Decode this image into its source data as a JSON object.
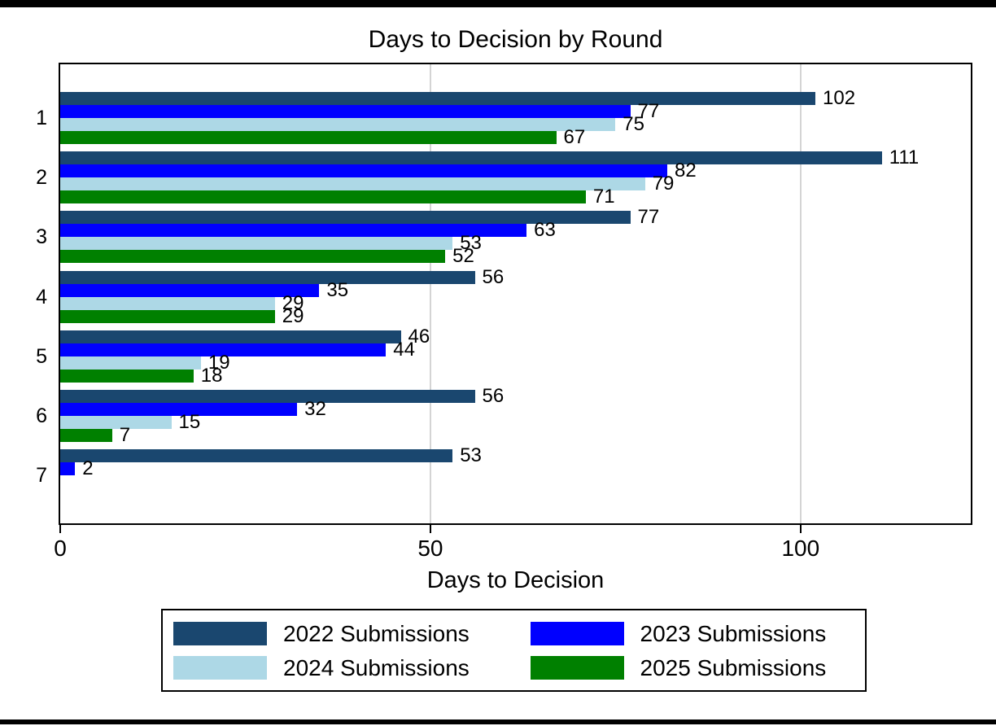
{
  "chart_data": {
    "type": "bar",
    "orientation": "horizontal",
    "title": "Days to Decision by Round",
    "xlabel": "Days to Decision",
    "ylabel": "",
    "categories": [
      "1",
      "2",
      "3",
      "4",
      "5",
      "6",
      "7"
    ],
    "series": [
      {
        "name": "2022 Submissions",
        "color": "#1a476f",
        "values": [
          102,
          111,
          77,
          56,
          46,
          56,
          53
        ]
      },
      {
        "name": "2023 Submissions",
        "color": "#0000ff",
        "values": [
          77,
          82,
          63,
          35,
          44,
          32,
          2
        ]
      },
      {
        "name": "2024 Submissions",
        "color": "#add8e6",
        "values": [
          75,
          79,
          53,
          29,
          19,
          15,
          null
        ]
      },
      {
        "name": "2025 Submissions",
        "color": "#008000",
        "values": [
          67,
          71,
          52,
          29,
          18,
          7,
          null
        ]
      }
    ],
    "xlim": [
      0,
      123
    ],
    "xticks": [
      0,
      50,
      100
    ],
    "xtick_labels": [
      "0",
      "50",
      "100"
    ],
    "grid": true,
    "grid_color": "#d4d4d4",
    "value_labels": true,
    "legend_position": "bottom",
    "frame_color": "#000000",
    "background_color": "#ffffff"
  }
}
